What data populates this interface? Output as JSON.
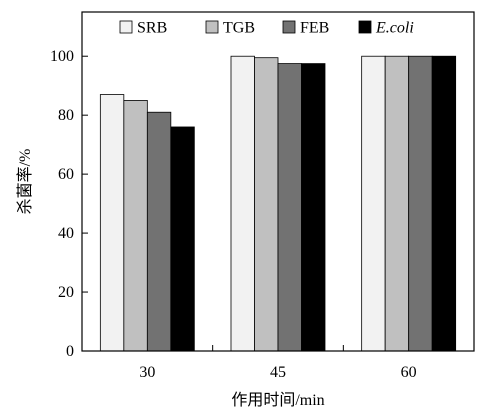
{
  "chart_data": {
    "type": "bar",
    "title": "",
    "xlabel": "作用时间/min",
    "ylabel": "杀菌率/%",
    "categories": [
      "30",
      "45",
      "60"
    ],
    "ylim": [
      0,
      115
    ],
    "yticks": [
      "0",
      "20",
      "40",
      "60",
      "80",
      "100"
    ],
    "grid": false,
    "legend_position": "top",
    "series": [
      {
        "name": "SRB",
        "color": "#f2f2f2",
        "italic": false,
        "values": [
          87,
          100,
          100
        ]
      },
      {
        "name": "TGB",
        "color": "#c0c0c0",
        "italic": false,
        "values": [
          85,
          99.5,
          100
        ]
      },
      {
        "name": "FEB",
        "color": "#727272",
        "italic": false,
        "values": [
          81,
          97.5,
          100
        ]
      },
      {
        "name": "E.coli",
        "color": "#000000",
        "italic": true,
        "values": [
          76,
          97.5,
          100
        ]
      }
    ]
  }
}
